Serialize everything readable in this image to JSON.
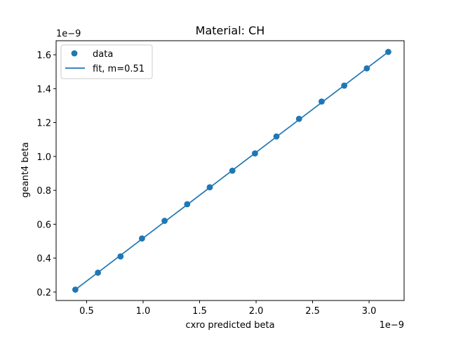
{
  "chart_data": {
    "type": "scatter",
    "title": "Material: CH",
    "xlabel": "cxro predicted beta",
    "ylabel": "geant4 beta",
    "x_offset_text": "1e−9",
    "y_offset_text": "1e−9",
    "xlim": [
      0.23,
      3.31
    ],
    "ylim": [
      0.15,
      1.683
    ],
    "x_ticks": [
      0.5,
      1.0,
      1.5,
      2.0,
      2.5,
      3.0
    ],
    "x_tick_labels": [
      "0.5",
      "1.0",
      "1.5",
      "2.0",
      "2.5",
      "3.0"
    ],
    "y_ticks": [
      0.2,
      0.4,
      0.6,
      0.8,
      1.0,
      1.2,
      1.4,
      1.6
    ],
    "y_tick_labels": [
      "0.2",
      "0.4",
      "0.6",
      "0.8",
      "1.0",
      "1.2",
      "1.4",
      "1.6"
    ],
    "grid": false,
    "legend_position": "top-left",
    "color": "#1f77b4",
    "series": [
      {
        "name": "data",
        "kind": "scatter",
        "x": [
          0.4,
          0.6,
          0.8,
          0.99,
          1.19,
          1.39,
          1.59,
          1.79,
          1.99,
          2.18,
          2.38,
          2.58,
          2.78,
          2.98,
          3.17
        ],
        "y": [
          0.214,
          0.314,
          0.41,
          0.516,
          0.62,
          0.718,
          0.818,
          0.916,
          1.018,
          1.118,
          1.222,
          1.324,
          1.418,
          1.52,
          1.617
        ]
      },
      {
        "name": "fit, m=0.51",
        "kind": "line",
        "x": [
          0.4,
          3.17
        ],
        "y": [
          0.214,
          1.617
        ]
      }
    ]
  }
}
